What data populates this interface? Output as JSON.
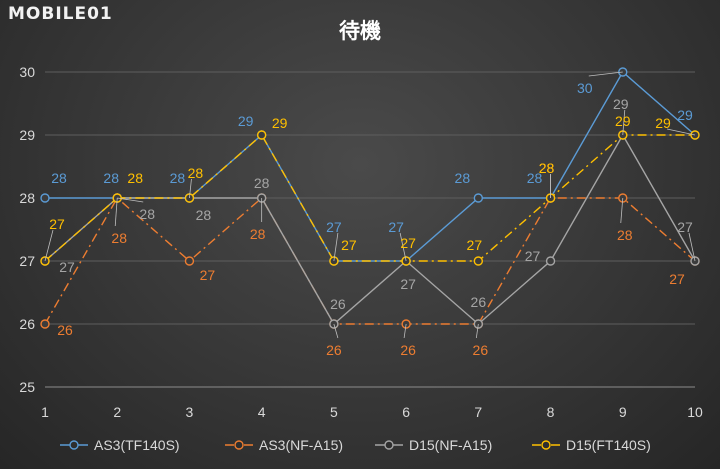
{
  "brand": {
    "logo_text": "MOBILE01"
  },
  "chart_data": {
    "type": "line",
    "title": "待機",
    "categories": [
      "1",
      "2",
      "3",
      "4",
      "5",
      "6",
      "7",
      "8",
      "9",
      "10"
    ],
    "ylim": [
      25,
      30
    ],
    "yticks": [
      25,
      26,
      27,
      28,
      29,
      30
    ],
    "grid": true,
    "legend_position": "bottom",
    "series": [
      {
        "name": "AS3(TF140S)",
        "color": "#5b9bd5",
        "dash": "solid",
        "values": [
          28,
          28,
          28,
          29,
          27,
          27,
          28,
          28,
          30,
          29
        ],
        "labels": [
          "28",
          "28",
          "28",
          "29",
          "27",
          "27",
          "28",
          "28",
          "30",
          "29"
        ]
      },
      {
        "name": "AS3(NF-A15)",
        "color": "#ed7d31",
        "dash": "dashdot",
        "values": [
          26,
          28,
          27,
          28,
          26,
          26,
          26,
          28,
          28,
          27
        ],
        "labels": [
          "26",
          "28",
          "27",
          "28",
          "26",
          "26",
          "26",
          "28",
          "28",
          "27"
        ]
      },
      {
        "name": "D15(NF-A15)",
        "color": "#a5a5a5",
        "dash": "solid",
        "values": [
          27,
          28,
          28,
          28,
          26,
          27,
          26,
          27,
          29,
          27
        ],
        "labels": [
          "27",
          "28",
          "28",
          "28",
          "26",
          "27",
          "26",
          "27",
          "29",
          "27"
        ]
      },
      {
        "name": "D15(FT140S)",
        "color": "#ffc000",
        "dash": "dashdot",
        "values": [
          27,
          28,
          28,
          29,
          27,
          27,
          27,
          28,
          29,
          29
        ],
        "labels": [
          "27",
          "28",
          "28",
          "29",
          "27",
          "27",
          "27",
          "28",
          "29",
          "29"
        ]
      }
    ]
  }
}
